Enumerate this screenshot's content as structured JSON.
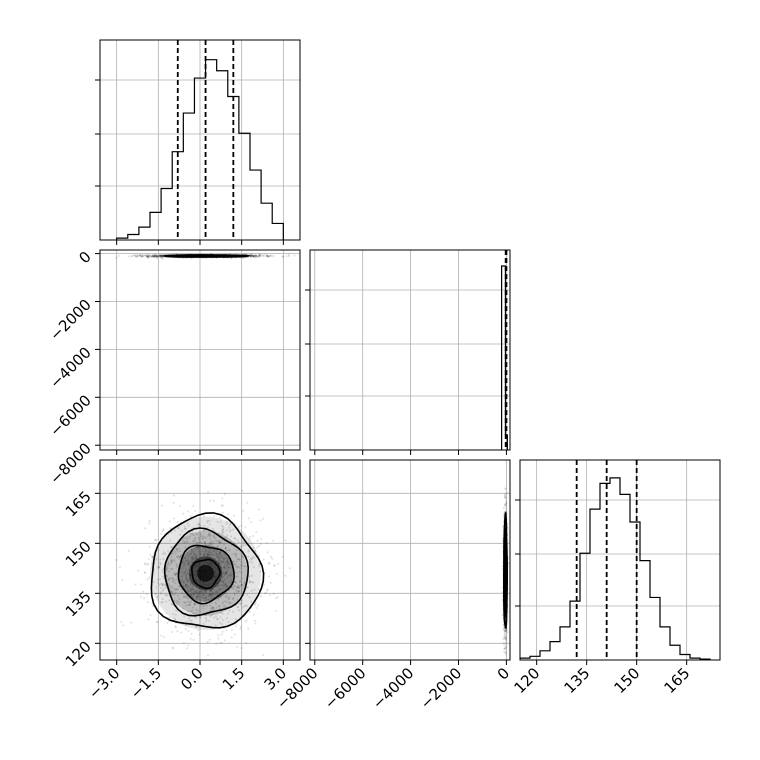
{
  "chart_data": {
    "type": "corner",
    "layout": "3x3-lower-triangle",
    "grid": true,
    "parameters": [
      {
        "id": "p0",
        "range": [
          -3.6,
          3.6
        ],
        "ticks": [
          -3.0,
          -1.5,
          0.0,
          1.5,
          3.0
        ],
        "tick_labels": [
          "−3.0",
          "−1.5",
          "0.0",
          "1.5",
          "3.0"
        ]
      },
      {
        "id": "p1",
        "range": [
          -8200,
          150
        ],
        "ticks": [
          -8000,
          -6000,
          -4000,
          -2000,
          0
        ],
        "tick_labels": [
          "−8000",
          "−6000",
          "−4000",
          "−2000",
          "0"
        ]
      },
      {
        "id": "p2",
        "range": [
          115,
          175
        ],
        "ticks": [
          120,
          135,
          150,
          165
        ],
        "tick_labels": [
          "120",
          "135",
          "150",
          "165"
        ]
      }
    ],
    "histograms": [
      {
        "param": "p0",
        "bin_edges": [
          -3.0,
          -2.6,
          -2.2,
          -1.8,
          -1.4,
          -1.0,
          -0.6,
          -0.2,
          0.2,
          0.6,
          1.0,
          1.4,
          1.8,
          2.2,
          2.6,
          3.0
        ],
        "counts": [
          0.01,
          0.03,
          0.07,
          0.15,
          0.28,
          0.48,
          0.69,
          0.88,
          0.98,
          0.92,
          0.78,
          0.58,
          0.38,
          0.2,
          0.09
        ],
        "quantiles": [
          -0.8,
          0.2,
          1.2
        ]
      },
      {
        "param": "p1",
        "bin_edges": [
          -200,
          -40,
          40
        ],
        "counts": [
          1.0,
          0.08
        ],
        "quantiles": [
          -30,
          -10,
          0
        ]
      },
      {
        "param": "p2",
        "bin_edges": [
          115,
          118,
          121,
          124,
          127,
          130,
          133,
          136,
          139,
          142,
          145,
          148,
          151,
          154,
          157,
          160,
          163,
          166,
          169,
          172
        ],
        "counts": [
          0.01,
          0.02,
          0.05,
          0.1,
          0.18,
          0.32,
          0.58,
          0.82,
          0.96,
          0.99,
          0.9,
          0.75,
          0.54,
          0.34,
          0.18,
          0.08,
          0.03,
          0.01,
          0.005
        ],
        "quantiles": [
          132,
          141,
          150
        ]
      }
    ],
    "joint": [
      {
        "x": "p0",
        "y": "p1",
        "center": [
          0.2,
          -100
        ],
        "spread": [
          1.0,
          30
        ],
        "contour_levels": [
          0.5,
          1.0,
          1.5
        ]
      },
      {
        "x": "p0",
        "y": "p2",
        "center": [
          0.2,
          141
        ],
        "spread": [
          1.0,
          8.5
        ],
        "contour_levels": [
          0.5,
          1.0,
          1.5,
          2.0
        ]
      },
      {
        "x": "p1",
        "y": "p2",
        "center": [
          -40,
          141
        ],
        "spread": [
          35,
          8.5
        ],
        "contour_levels": [
          0.5,
          1.0,
          1.5,
          2.0
        ]
      }
    ]
  }
}
